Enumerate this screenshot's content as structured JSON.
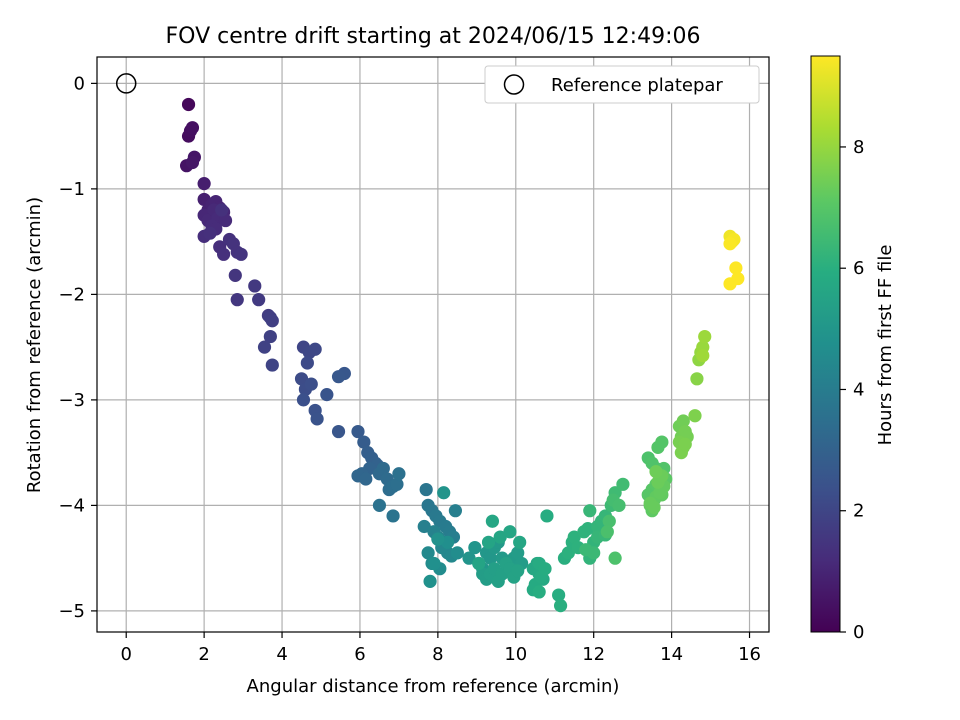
{
  "chart_data": {
    "type": "scatter",
    "title": "FOV centre drift starting at 2024/06/15 12:49:06",
    "xlabel": "Angular distance from reference (arcmin)",
    "ylabel": "Rotation from reference (arcmin)",
    "colorbar_label": "Hours from first FF file",
    "xlim": [
      -0.75,
      16.5
    ],
    "ylim": [
      -5.2,
      0.25
    ],
    "clim": [
      0,
      9.5
    ],
    "x_ticks": [
      0,
      2,
      4,
      6,
      8,
      10,
      12,
      14,
      16
    ],
    "y_ticks": [
      0,
      -1,
      -2,
      -3,
      -4,
      -5
    ],
    "colorbar_ticks": [
      0,
      2,
      4,
      6,
      8
    ],
    "grid": true,
    "legend": {
      "placement": "top-right",
      "entries": [
        "Reference platepar"
      ]
    },
    "colormap": "viridis",
    "reference": {
      "x": 0,
      "y": 0
    },
    "series": [
      {
        "x": [
          1.6,
          1.6,
          1.65,
          1.7,
          1.55,
          1.75,
          1.7,
          2.0,
          2.0,
          2.1,
          2.2,
          2.3,
          2.4,
          2.5,
          2.0,
          2.1,
          2.25,
          2.35,
          2.55,
          2.2,
          2.3,
          2.0,
          2.4,
          2.5,
          2.15,
          2.45,
          2.65,
          2.75,
          2.85,
          2.95,
          2.8,
          2.85,
          3.3,
          3.4,
          3.65,
          3.7,
          3.75,
          3.7,
          3.55,
          3.75,
          4.55,
          4.7,
          4.85,
          4.65,
          4.5,
          4.6,
          4.75,
          4.55,
          4.85,
          4.9,
          5.15,
          5.45,
          5.6,
          5.45,
          5.95,
          6.1,
          6.2,
          6.3,
          6.4,
          6.45,
          6.25,
          6.05,
          5.95,
          6.15,
          6.5,
          6.6,
          6.7,
          6.75,
          6.85,
          6.95,
          7.0,
          6.5,
          6.85,
          7.7,
          7.75,
          7.85,
          7.95,
          8.05,
          8.2,
          8.3,
          8.4,
          8.45,
          7.65,
          7.9,
          8.0,
          8.15,
          8.25,
          8.1,
          8.35,
          7.75,
          7.85,
          8.05,
          8.5,
          8.25,
          7.9,
          7.8,
          8.0,
          8.15,
          8.8,
          8.95,
          9.05,
          9.15,
          9.25,
          9.35,
          9.45,
          9.55,
          9.65,
          9.75,
          9.85,
          9.95,
          10.05,
          10.15,
          9.15,
          9.25,
          9.35,
          9.45,
          9.55,
          9.65,
          9.75,
          9.85,
          9.95,
          10.05,
          9.05,
          9.3,
          9.6,
          9.85,
          10.1,
          9.4,
          10.45,
          10.55,
          10.6,
          10.7,
          10.5,
          10.45,
          10.6,
          10.65,
          10.75,
          10.8,
          10.6,
          11.1,
          11.15,
          11.25,
          11.35,
          11.45,
          11.5,
          11.6,
          11.75,
          11.85,
          11.9,
          12.0,
          12.1,
          12.2,
          12.3,
          12.1,
          11.9,
          12.3,
          12.0,
          11.8,
          12.45,
          12.55,
          12.75,
          12.5,
          12.65,
          12.4,
          12.35,
          12.55,
          13.4,
          13.5,
          13.6,
          13.7,
          13.8,
          13.65,
          13.75,
          13.4,
          13.5,
          13.55,
          13.6,
          13.7,
          13.85,
          13.5,
          13.45,
          13.75,
          13.6,
          13.7,
          13.8,
          13.45,
          13.55,
          13.65,
          13.75,
          13.6,
          14.2,
          14.3,
          14.25,
          14.35,
          14.4,
          14.3,
          14.2,
          14.25,
          14.35,
          14.6,
          14.65,
          14.7,
          14.75,
          14.8,
          14.85,
          14.8,
          15.5,
          15.55,
          15.6,
          15.5,
          15.65,
          15.7,
          15.5
        ],
        "y": [
          -0.2,
          -0.5,
          -0.45,
          -0.42,
          -0.78,
          -0.7,
          -0.75,
          -0.95,
          -1.1,
          -1.2,
          -1.15,
          -1.12,
          -1.18,
          -1.22,
          -1.25,
          -1.3,
          -1.2,
          -1.28,
          -1.3,
          -1.35,
          -1.38,
          -1.45,
          -1.55,
          -1.62,
          -1.42,
          -1.2,
          -1.48,
          -1.52,
          -1.6,
          -1.62,
          -1.82,
          -2.05,
          -1.92,
          -2.05,
          -2.2,
          -2.22,
          -2.25,
          -2.4,
          -2.5,
          -2.67,
          -2.5,
          -2.55,
          -2.52,
          -2.65,
          -2.8,
          -2.9,
          -2.85,
          -3.0,
          -3.1,
          -3.18,
          -2.95,
          -3.3,
          -2.75,
          -2.78,
          -3.3,
          -3.4,
          -3.5,
          -3.55,
          -3.6,
          -3.62,
          -3.65,
          -3.7,
          -3.72,
          -3.75,
          -3.7,
          -3.65,
          -3.75,
          -3.85,
          -3.82,
          -3.8,
          -3.7,
          -4.0,
          -4.1,
          -3.85,
          -4.0,
          -4.05,
          -4.1,
          -4.15,
          -4.2,
          -4.25,
          -4.3,
          -4.05,
          -4.2,
          -4.25,
          -4.3,
          -4.35,
          -4.45,
          -4.4,
          -4.48,
          -4.45,
          -4.55,
          -4.6,
          -4.45,
          -4.35,
          -4.55,
          -4.72,
          -4.32,
          -3.88,
          -4.5,
          -4.4,
          -4.55,
          -4.6,
          -4.45,
          -4.5,
          -4.4,
          -4.35,
          -4.5,
          -4.55,
          -4.6,
          -4.5,
          -4.45,
          -4.55,
          -4.65,
          -4.7,
          -4.65,
          -4.6,
          -4.72,
          -4.65,
          -4.55,
          -4.6,
          -4.68,
          -4.62,
          -4.55,
          -4.35,
          -4.3,
          -4.25,
          -4.35,
          -4.15,
          -4.6,
          -4.55,
          -4.65,
          -4.7,
          -4.75,
          -4.8,
          -4.55,
          -4.68,
          -4.6,
          -4.1,
          -4.82,
          -4.85,
          -4.95,
          -4.5,
          -4.45,
          -4.35,
          -4.3,
          -4.4,
          -4.25,
          -4.22,
          -4.5,
          -4.35,
          -4.2,
          -4.15,
          -4.1,
          -4.3,
          -4.05,
          -4.28,
          -4.45,
          -4.42,
          -4.0,
          -3.88,
          -3.8,
          -3.95,
          -4.0,
          -4.15,
          -4.25,
          -4.5,
          -3.55,
          -3.6,
          -3.65,
          -3.7,
          -3.65,
          -3.45,
          -3.4,
          -3.9,
          -3.85,
          -3.95,
          -3.8,
          -3.85,
          -3.75,
          -4.05,
          -4.0,
          -3.9,
          -3.92,
          -3.88,
          -3.82,
          -3.98,
          -4.02,
          -3.78,
          -3.72,
          -3.68,
          -3.25,
          -3.2,
          -3.35,
          -3.3,
          -3.35,
          -3.45,
          -3.4,
          -3.5,
          -3.42,
          -3.15,
          -2.8,
          -2.62,
          -2.55,
          -2.5,
          -2.4,
          -2.58,
          -1.45,
          -1.5,
          -1.48,
          -1.52,
          -1.75,
          -1.85,
          -1.9
        ],
        "c": [
          0.2,
          0.3,
          0.35,
          0.4,
          0.5,
          0.55,
          0.6,
          0.8,
          0.85,
          0.9,
          0.95,
          1.0,
          1.0,
          1.05,
          1.05,
          1.1,
          1.1,
          1.15,
          1.15,
          1.2,
          1.2,
          1.25,
          1.25,
          1.3,
          1.3,
          1.35,
          1.35,
          1.4,
          1.4,
          1.45,
          1.5,
          1.55,
          1.6,
          1.65,
          1.7,
          1.75,
          1.8,
          1.85,
          1.9,
          1.95,
          2.0,
          2.05,
          2.1,
          2.15,
          2.2,
          2.25,
          2.3,
          2.35,
          2.4,
          2.45,
          2.5,
          2.55,
          2.6,
          2.65,
          2.7,
          2.8,
          2.85,
          2.9,
          2.95,
          3.0,
          3.05,
          3.1,
          3.15,
          3.2,
          3.25,
          3.3,
          3.35,
          3.4,
          3.45,
          3.5,
          3.55,
          3.6,
          3.65,
          3.7,
          3.75,
          3.8,
          3.85,
          3.9,
          3.95,
          4.0,
          4.05,
          4.1,
          4.15,
          4.2,
          4.25,
          4.3,
          4.35,
          4.4,
          4.45,
          4.5,
          4.55,
          4.6,
          4.65,
          4.7,
          4.75,
          4.8,
          4.85,
          4.9,
          4.9,
          4.95,
          5.0,
          5.0,
          5.05,
          5.05,
          5.1,
          5.1,
          5.15,
          5.15,
          5.2,
          5.2,
          5.25,
          5.25,
          5.3,
          5.3,
          5.35,
          5.35,
          5.4,
          5.4,
          5.45,
          5.45,
          5.5,
          5.5,
          5.55,
          5.55,
          5.6,
          5.6,
          5.65,
          5.65,
          5.7,
          5.7,
          5.75,
          5.75,
          5.8,
          5.8,
          5.85,
          5.85,
          5.9,
          5.9,
          5.95,
          5.95,
          6.0,
          6.0,
          6.05,
          6.05,
          6.1,
          6.1,
          6.15,
          6.15,
          6.2,
          6.2,
          6.25,
          6.25,
          6.3,
          6.3,
          6.35,
          6.35,
          6.4,
          6.4,
          6.45,
          6.5,
          6.55,
          6.6,
          6.65,
          6.7,
          6.75,
          6.8,
          6.8,
          6.85,
          6.85,
          6.9,
          6.9,
          6.95,
          6.95,
          7.0,
          7.0,
          7.05,
          7.05,
          7.1,
          7.1,
          7.15,
          7.15,
          7.2,
          7.2,
          7.25,
          7.25,
          7.3,
          7.3,
          7.35,
          7.35,
          7.4,
          7.4,
          7.45,
          7.45,
          7.5,
          7.5,
          7.55,
          7.55,
          7.6,
          7.6,
          7.65,
          7.8,
          7.9,
          8.0,
          8.05,
          8.1,
          8.15,
          9.3,
          9.35,
          9.4,
          9.45,
          9.5,
          9.55,
          9.6
        ]
      }
    ]
  }
}
